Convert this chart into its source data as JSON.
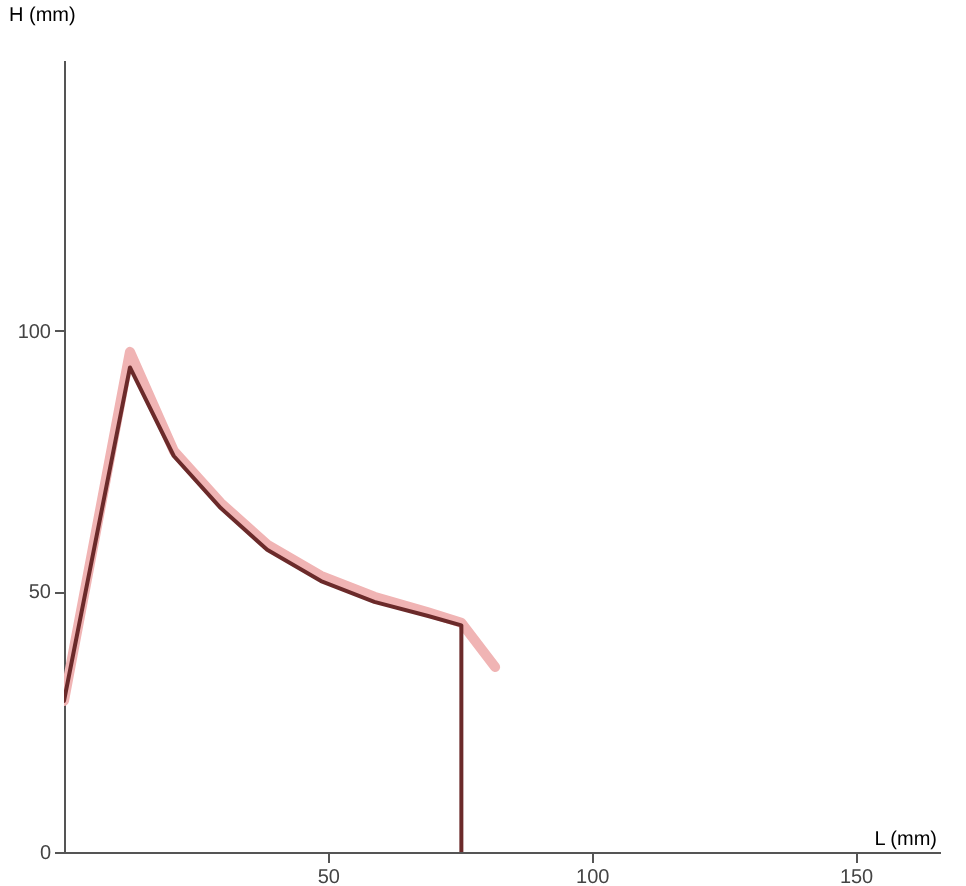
{
  "chart_data": {
    "type": "line",
    "xlabel": "L (mm)",
    "ylabel": "H (mm)",
    "xlim": [
      0,
      166
    ],
    "ylim": [
      0,
      152
    ],
    "xticks": [
      50,
      100,
      150
    ],
    "yticks": [
      0,
      50,
      100
    ],
    "grid": false,
    "line_style": "solid",
    "series": [
      {
        "color": "#f0b4b4",
        "x": [
          0,
          12.5,
          20.8,
          29.7,
          38.5,
          48.7,
          58.8,
          69,
          75.3,
          81.7
        ],
        "values": [
          29,
          96,
          77,
          67,
          59,
          53,
          49,
          46,
          44,
          35.5
        ]
      },
      {
        "color": "#6b2a2a",
        "x": [
          0,
          12.5,
          20.8,
          29.7,
          38.5,
          48.7,
          58.8,
          69,
          75.3,
          75.3
        ],
        "values": [
          29,
          93,
          76,
          66,
          58,
          52,
          48,
          45.3,
          43.5,
          0
        ]
      }
    ]
  }
}
